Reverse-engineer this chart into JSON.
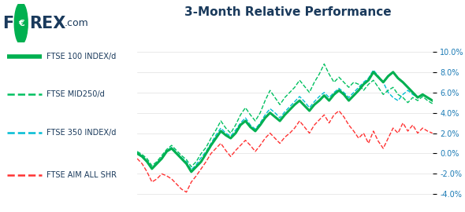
{
  "title": "3-Month Relative Performance",
  "title_fontsize": 11,
  "title_color": "#1a3a5c",
  "background_color": "#ffffff",
  "ylim": [
    -4.5,
    10.5
  ],
  "yticks": [
    -4,
    -2,
    0,
    2,
    4,
    6,
    8,
    10
  ],
  "series": {
    "ftse100": {
      "label": "FTSE 100 INDEX/d",
      "color": "#00b050",
      "linewidth": 2.2,
      "linestyle": "solid"
    },
    "ftsemid250": {
      "label": "FTSE MID250/d",
      "color": "#00c060",
      "linewidth": 1.0,
      "linestyle": "dashed"
    },
    "ftse350": {
      "label": "FTSE 350 INDEX/d",
      "color": "#00bcd4",
      "linewidth": 1.0,
      "linestyle": "dashed"
    },
    "ftseaim": {
      "label": "FTSE AIM ALL SHR",
      "color": "#ff3333",
      "linewidth": 1.0,
      "linestyle": "dashed"
    }
  },
  "logo": {
    "F_color": "#1a3a5c",
    "circle_color": "#00b050",
    "REX_color": "#1a3a5c",
    "com_color": "#1a3a5c"
  },
  "legend_label_color": "#1a3a5c",
  "tick_color": "#1a7ab5",
  "x_values": [
    0,
    1,
    2,
    3,
    4,
    5,
    6,
    7,
    8,
    9,
    10,
    11,
    12,
    13,
    14,
    15,
    16,
    17,
    18,
    19,
    20,
    21,
    22,
    23,
    24,
    25,
    26,
    27,
    28,
    29,
    30,
    31,
    32,
    33,
    34,
    35,
    36,
    37,
    38,
    39,
    40,
    41,
    42,
    43,
    44,
    45,
    46,
    47,
    48,
    49,
    50,
    51,
    52,
    53,
    54,
    55,
    56,
    57,
    58,
    59,
    60
  ],
  "ftse100_y": [
    0.0,
    -0.3,
    -0.8,
    -1.5,
    -1.0,
    -0.5,
    0.2,
    0.5,
    0.0,
    -0.5,
    -1.0,
    -1.8,
    -1.3,
    -0.8,
    0.0,
    0.8,
    1.5,
    2.2,
    1.8,
    1.5,
    2.0,
    2.8,
    3.2,
    2.6,
    2.2,
    2.8,
    3.5,
    4.0,
    3.6,
    3.2,
    3.8,
    4.3,
    4.8,
    5.2,
    4.7,
    4.2,
    4.8,
    5.2,
    5.7,
    5.2,
    5.8,
    6.2,
    5.8,
    5.2,
    5.7,
    6.2,
    6.8,
    7.2,
    8.0,
    7.5,
    7.0,
    7.6,
    8.0,
    7.4,
    7.0,
    6.5,
    6.0,
    5.5,
    5.8,
    5.5,
    5.2
  ],
  "ftsemid250_y": [
    0.2,
    -0.1,
    -0.5,
    -1.2,
    -0.8,
    -0.2,
    0.4,
    0.8,
    0.3,
    -0.2,
    -0.6,
    -1.3,
    -0.8,
    0.0,
    0.6,
    1.5,
    2.3,
    3.2,
    2.5,
    2.0,
    2.8,
    3.8,
    4.5,
    3.8,
    3.2,
    4.0,
    5.2,
    6.2,
    5.5,
    4.8,
    5.5,
    6.0,
    6.5,
    7.2,
    6.6,
    6.0,
    7.0,
    7.8,
    8.8,
    7.8,
    7.0,
    7.5,
    7.0,
    6.5,
    7.0,
    6.8,
    6.2,
    6.8,
    7.2,
    6.5,
    5.8,
    6.2,
    6.5,
    5.8,
    5.5,
    5.0,
    5.5,
    5.2,
    5.6,
    5.2,
    4.9
  ],
  "ftse350_y": [
    0.1,
    -0.2,
    -0.7,
    -1.4,
    -0.9,
    -0.4,
    0.3,
    0.6,
    0.1,
    -0.4,
    -0.8,
    -1.6,
    -1.1,
    -0.4,
    0.2,
    1.0,
    1.8,
    2.5,
    2.0,
    1.7,
    2.3,
    3.0,
    3.5,
    2.8,
    2.4,
    3.0,
    3.8,
    4.4,
    4.0,
    3.5,
    4.1,
    4.6,
    5.1,
    5.6,
    5.1,
    4.5,
    5.1,
    5.6,
    6.0,
    5.5,
    6.0,
    6.4,
    6.0,
    5.5,
    6.0,
    6.5,
    7.0,
    7.4,
    8.2,
    7.6,
    7.0,
    6.0,
    5.5,
    5.2,
    5.8,
    6.2,
    5.8,
    5.5,
    5.8,
    5.5,
    5.2
  ],
  "ftseaim_y": [
    -0.5,
    -1.0,
    -1.8,
    -2.8,
    -2.5,
    -2.0,
    -2.2,
    -2.5,
    -3.0,
    -3.5,
    -3.8,
    -2.8,
    -2.2,
    -1.5,
    -0.8,
    0.0,
    0.5,
    1.0,
    0.3,
    -0.3,
    0.3,
    0.8,
    1.3,
    0.8,
    0.2,
    0.8,
    1.5,
    2.0,
    1.5,
    1.0,
    1.6,
    2.0,
    2.5,
    3.2,
    2.6,
    2.0,
    2.8,
    3.3,
    3.8,
    3.0,
    3.8,
    4.2,
    3.6,
    2.8,
    2.2,
    1.5,
    2.0,
    1.0,
    2.2,
    1.2,
    0.5,
    1.5,
    2.5,
    2.0,
    3.0,
    2.2,
    2.8,
    2.0,
    2.5,
    2.2,
    2.0
  ]
}
